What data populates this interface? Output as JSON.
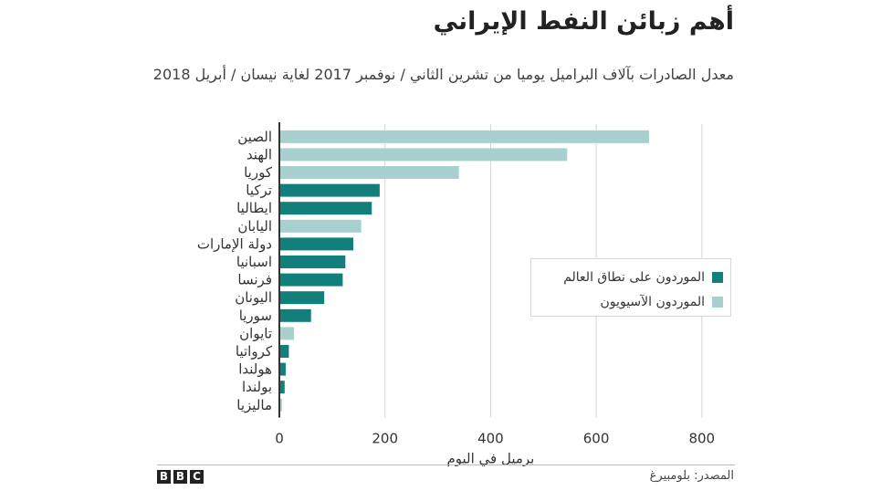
{
  "title": "أهم زبائن النفط الإيراني",
  "subtitle": "معدل الصادرات بآلاف البراميل يوميا من تشرين الثاني / نوفمبر 2017 لغاية نيسان / أبريل 2018",
  "source": "المصدر: بلومبيرغ",
  "logo_letters": [
    "B",
    "B",
    "C"
  ],
  "colors": {
    "world": "#127f7a",
    "asian": "#a7d0cf",
    "grid": "#d5d5d5",
    "axis": "#333333"
  },
  "legend": [
    {
      "label": "الموردون على نطاق العالم",
      "group": "world"
    },
    {
      "label": "الموردون الآسيويون",
      "group": "asian"
    }
  ],
  "chart_data": {
    "type": "bar",
    "orientation": "horizontal",
    "xlabel": "برميل في اليوم",
    "xlim": [
      0,
      900
    ],
    "xticks": [
      0,
      200,
      400,
      600,
      800
    ],
    "grid": true,
    "legend_position": "right",
    "categories": [
      "الصين",
      "الهند",
      "كوريا",
      "تركيا",
      "ايطاليا",
      "اليابان",
      "دولة الإمارات",
      "اسبانيا",
      "فرنسا",
      "اليونان",
      "سوريا",
      "تايوان",
      "كرواتيا",
      "هولندا",
      "بولندا",
      "ماليزيا"
    ],
    "values": [
      700,
      545,
      340,
      190,
      175,
      155,
      140,
      125,
      120,
      85,
      60,
      28,
      18,
      12,
      10,
      5
    ],
    "groups": [
      "asian",
      "asian",
      "asian",
      "world",
      "world",
      "asian",
      "world",
      "world",
      "world",
      "world",
      "world",
      "asian",
      "world",
      "world",
      "world",
      "asian"
    ]
  }
}
